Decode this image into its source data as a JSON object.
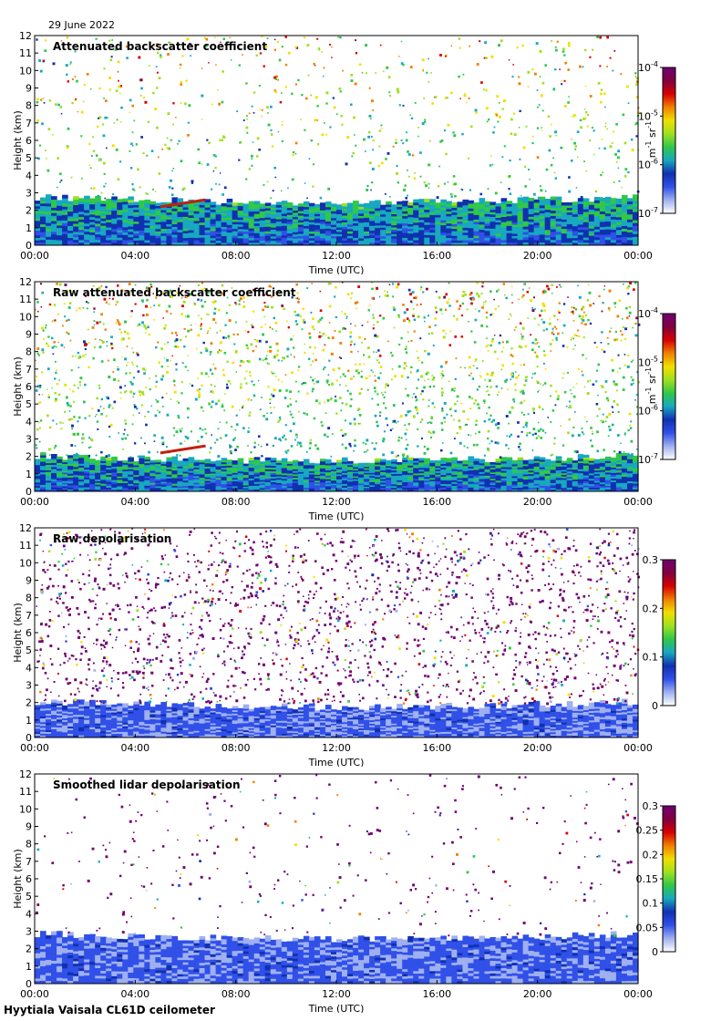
{
  "date": "29 June 2022",
  "footer": "Hyytiala Vaisala CL61D ceilometer",
  "colors": {
    "colormap": [
      "#ffffff",
      "#9fb0f0",
      "#3050e8",
      "#1030b0",
      "#18a8c0",
      "#30c848",
      "#a0e020",
      "#f0e000",
      "#f08000",
      "#d80000",
      "#800040",
      "#700070"
    ],
    "cloud_layer": "#c02010"
  },
  "chart_data": [
    {
      "type": "heatmap",
      "title": "Attenuated backscatter coefficient",
      "xlabel": "Time (UTC)",
      "ylabel": "Height (km)",
      "xticks": [
        "00:00",
        "04:00",
        "08:00",
        "12:00",
        "16:00",
        "20:00",
        "00:00"
      ],
      "yticks": [
        "0",
        "1",
        "2",
        "3",
        "4",
        "5",
        "6",
        "7",
        "8",
        "9",
        "10",
        "11",
        "12"
      ],
      "ylim": [
        0,
        12
      ],
      "colorbar": {
        "ticks": [
          {
            "base": "10",
            "exp": "-4"
          },
          {
            "base": "10",
            "exp": "-5"
          },
          {
            "base": "10",
            "exp": "-6"
          },
          {
            "base": "10",
            "exp": "-7"
          }
        ],
        "unit": {
          "m": "m",
          "m_exp": "-1",
          "sr": "sr",
          "sr_exp": "-1"
        },
        "scale": "log",
        "range": [
          1e-07,
          0.0001
        ]
      },
      "features": {
        "boundary_layer_top_km": 2.7,
        "cloud_layer_km": [
          2.2,
          2.6
        ],
        "cloud_time_h": [
          5.0,
          6.8
        ],
        "noise_level": 0.3
      }
    },
    {
      "type": "heatmap",
      "title": "Raw attenuated backscatter coefficient",
      "xlabel": "Time (UTC)",
      "ylabel": "Height (km)",
      "xticks": [
        "00:00",
        "04:00",
        "08:00",
        "12:00",
        "16:00",
        "20:00",
        "00:00"
      ],
      "yticks": [
        "0",
        "1",
        "2",
        "3",
        "4",
        "5",
        "6",
        "7",
        "8",
        "9",
        "10",
        "11",
        "12"
      ],
      "ylim": [
        0,
        12
      ],
      "colorbar": {
        "ticks": [
          {
            "base": "10",
            "exp": "-4"
          },
          {
            "base": "10",
            "exp": "-5"
          },
          {
            "base": "10",
            "exp": "-6"
          },
          {
            "base": "10",
            "exp": "-7"
          }
        ],
        "unit": {
          "m": "m",
          "m_exp": "-1",
          "sr": "sr",
          "sr_exp": "-1"
        },
        "scale": "log",
        "range": [
          1e-07,
          0.0001
        ]
      },
      "features": {
        "boundary_layer_top_km": 2.0,
        "cloud_layer_km": [
          2.2,
          2.6
        ],
        "cloud_time_h": [
          5.0,
          6.8
        ],
        "noise_level": 0.9
      }
    },
    {
      "type": "heatmap",
      "title": "Raw depolarisation",
      "xlabel": "Time (UTC)",
      "ylabel": "Height (km)",
      "xticks": [
        "00:00",
        "04:00",
        "08:00",
        "12:00",
        "16:00",
        "20:00",
        "00:00"
      ],
      "yticks": [
        "0",
        "1",
        "2",
        "3",
        "4",
        "5",
        "6",
        "7",
        "8",
        "9",
        "10",
        "11",
        "12"
      ],
      "ylim": [
        0,
        12
      ],
      "colorbar": {
        "ticks": [
          "0.3",
          "0.2",
          "0.1",
          "0"
        ],
        "scale": "linear",
        "range": [
          0,
          0.3
        ]
      },
      "features": {
        "boundary_layer_top_km": 2.0,
        "noise_level": 1.0
      }
    },
    {
      "type": "heatmap",
      "title": "Smoothed lidar depolarisation",
      "xlabel": "Time (UTC)",
      "ylabel": "Height (km)",
      "xticks": [
        "00:00",
        "04:00",
        "08:00",
        "12:00",
        "16:00",
        "20:00",
        "00:00"
      ],
      "yticks": [
        "0",
        "1",
        "2",
        "3",
        "4",
        "5",
        "6",
        "7",
        "8",
        "9",
        "10",
        "11",
        "12"
      ],
      "ylim": [
        0,
        12
      ],
      "colorbar": {
        "ticks": [
          "0.3",
          "0.25",
          "0.2",
          "0.15",
          "0.1",
          "0.05",
          "0"
        ],
        "scale": "linear",
        "range": [
          0,
          0.3
        ]
      },
      "features": {
        "boundary_layer_top_km": 2.8,
        "noise_level": 0.08
      }
    }
  ]
}
